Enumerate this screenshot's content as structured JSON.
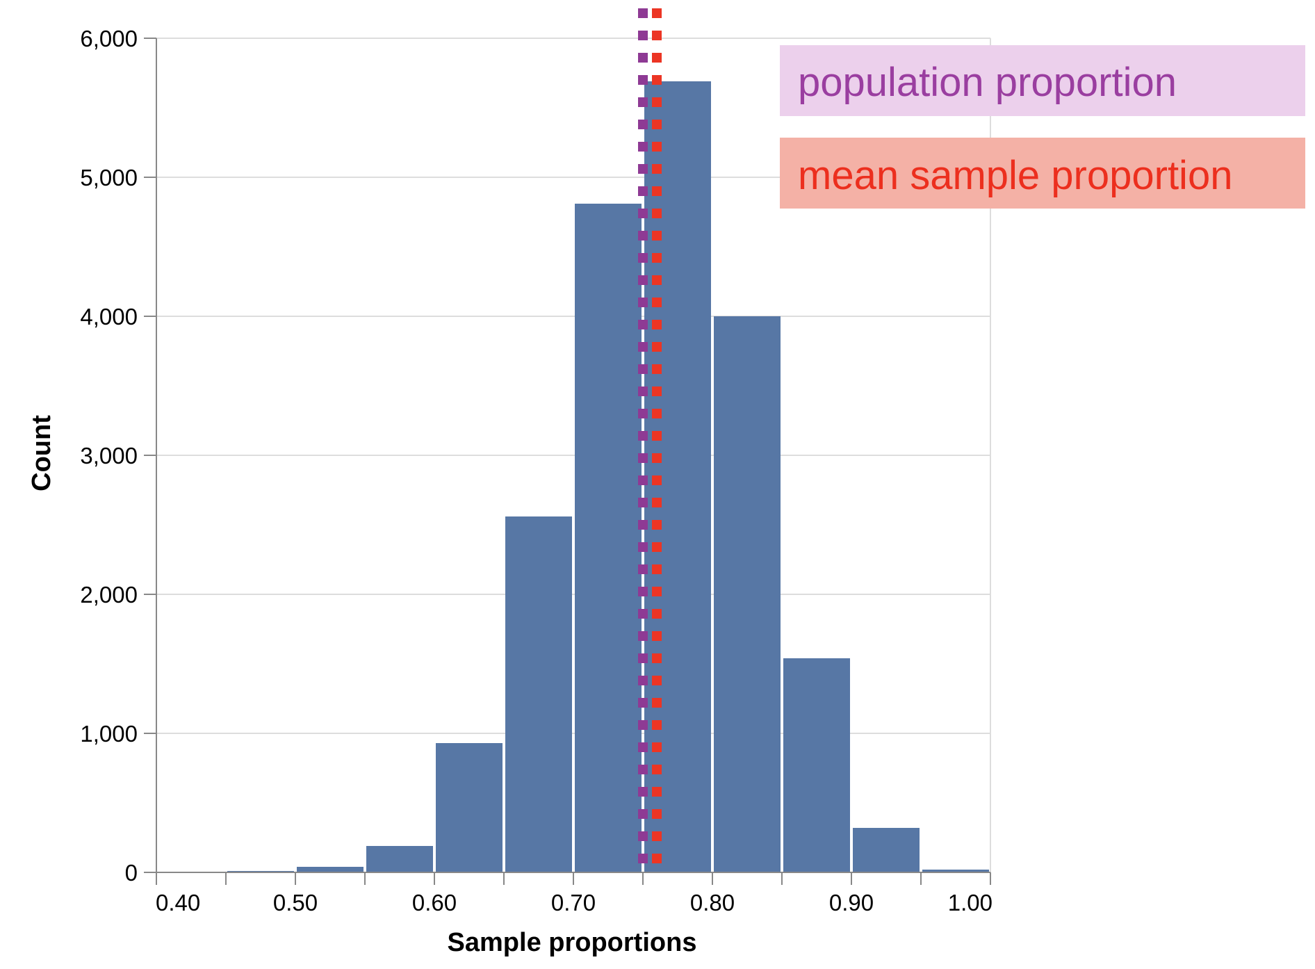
{
  "chart_data": {
    "type": "bar",
    "xlabel": "Sample proportions",
    "ylabel": "Count",
    "xlim": [
      0.4,
      1.0
    ],
    "ylim": [
      0,
      6000
    ],
    "grid": true,
    "bin_width": 0.05,
    "bins": [
      {
        "x0": 0.4,
        "x1": 0.45,
        "count": 0
      },
      {
        "x0": 0.45,
        "x1": 0.5,
        "count": 10
      },
      {
        "x0": 0.5,
        "x1": 0.55,
        "count": 40
      },
      {
        "x0": 0.55,
        "x1": 0.6,
        "count": 190
      },
      {
        "x0": 0.6,
        "x1": 0.65,
        "count": 930
      },
      {
        "x0": 0.65,
        "x1": 0.7,
        "count": 2560
      },
      {
        "x0": 0.7,
        "x1": 0.75,
        "count": 4810
      },
      {
        "x0": 0.75,
        "x1": 0.8,
        "count": 5690
      },
      {
        "x0": 0.8,
        "x1": 0.85,
        "count": 4000
      },
      {
        "x0": 0.85,
        "x1": 0.9,
        "count": 1540
      },
      {
        "x0": 0.9,
        "x1": 0.95,
        "count": 320
      },
      {
        "x0": 0.95,
        "x1": 1.0,
        "count": 20
      }
    ],
    "x_ticks": [
      {
        "value": 0.4,
        "label": "0.40"
      },
      {
        "value": 0.45,
        "label": ""
      },
      {
        "value": 0.5,
        "label": "0.50"
      },
      {
        "value": 0.55,
        "label": ""
      },
      {
        "value": 0.6,
        "label": "0.60"
      },
      {
        "value": 0.65,
        "label": ""
      },
      {
        "value": 0.7,
        "label": "0.70"
      },
      {
        "value": 0.75,
        "label": ""
      },
      {
        "value": 0.8,
        "label": "0.80"
      },
      {
        "value": 0.85,
        "label": ""
      },
      {
        "value": 0.9,
        "label": "0.90"
      },
      {
        "value": 0.95,
        "label": ""
      },
      {
        "value": 1.0,
        "label": "1.00"
      }
    ],
    "y_ticks": [
      {
        "value": 0,
        "label": "0"
      },
      {
        "value": 1000,
        "label": "1,000"
      },
      {
        "value": 2000,
        "label": "2,000"
      },
      {
        "value": 3000,
        "label": "3,000"
      },
      {
        "value": 4000,
        "label": "4,000"
      },
      {
        "value": 5000,
        "label": "5,000"
      },
      {
        "value": 6000,
        "label": "6,000"
      }
    ],
    "reference_lines": [
      {
        "name": "population proportion",
        "x": 0.75,
        "color": "#8e3a94"
      },
      {
        "name": "mean sample proportion",
        "x": 0.76,
        "color": "#ec3524"
      }
    ],
    "legend": {
      "placement": "top-right",
      "entries": [
        {
          "label": "population proportion",
          "text_color": "#9a3ea0",
          "bg_color": "#ecd0ec"
        },
        {
          "label": "mean sample proportion",
          "text_color": "#ec2f1e",
          "bg_color": "#f4b1a6"
        }
      ]
    },
    "colors": {
      "bar": "#5777a5",
      "grid": "#dddddd",
      "axis": "#888888"
    }
  }
}
